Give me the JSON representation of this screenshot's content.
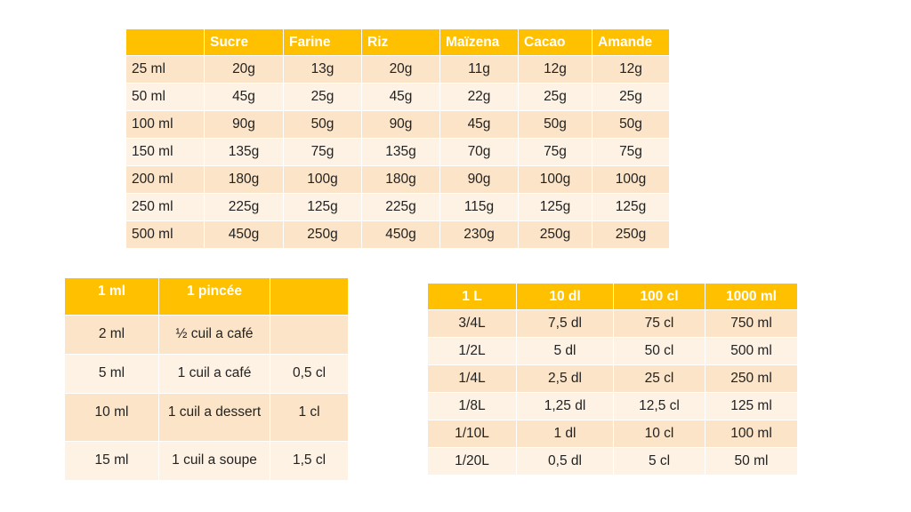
{
  "tables": [
    {
      "header": [
        "Sucre",
        "Farine",
        "Riz",
        "Maïzena",
        "Cacao",
        "Amande"
      ],
      "rows": [
        [
          "25 ml",
          "20g",
          "13g",
          "20g",
          "11g",
          "12g",
          "12g"
        ],
        [
          "50 ml",
          "45g",
          "25g",
          "45g",
          "22g",
          "25g",
          "25g"
        ],
        [
          "100 ml",
          "90g",
          "50g",
          "90g",
          "45g",
          "50g",
          "50g"
        ],
        [
          "150 ml",
          "135g",
          "75g",
          "135g",
          "70g",
          "75g",
          "75g"
        ],
        [
          "200 ml",
          "180g",
          "100g",
          "180g",
          "90g",
          "100g",
          "100g"
        ],
        [
          "250 ml",
          "225g",
          "125g",
          "225g",
          "115g",
          "125g",
          "125g"
        ],
        [
          "500 ml",
          "450g",
          "250g",
          "450g",
          "230g",
          "250g",
          "250g"
        ]
      ]
    },
    {
      "header": [
        "1 ml",
        "1 pincée"
      ],
      "rows": [
        [
          "2 ml",
          "½ cuil a café"
        ],
        [
          "5 ml",
          "1 cuil a café",
          "0,5 cl"
        ],
        [
          "10 ml",
          "1 cuil a dessert",
          "1 cl"
        ],
        [
          "15 ml",
          "1 cuil a soupe",
          "1,5 cl"
        ]
      ]
    },
    {
      "header": [
        "1 L",
        "10 dl",
        "100 cl",
        "1000 ml"
      ],
      "rows": [
        [
          "3/4L",
          "7,5 dl",
          "75 cl",
          "750 ml"
        ],
        [
          "1/2L",
          "5 dl",
          "50 cl",
          "500 ml"
        ],
        [
          "1/4L",
          "2,5 dl",
          "25 cl",
          "250 ml"
        ],
        [
          "1/8L",
          "1,25 dl",
          "12,5 cl",
          "125 ml"
        ],
        [
          "1/10L",
          "1 dl",
          "10 cl",
          "100 ml"
        ],
        [
          "1/20L",
          "0,5 dl",
          "5 cl",
          "50 ml"
        ]
      ]
    }
  ]
}
